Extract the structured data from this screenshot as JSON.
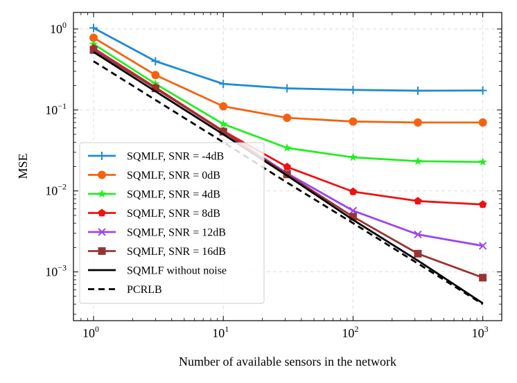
{
  "chart_data": {
    "type": "line",
    "xscale": "log",
    "yscale": "log",
    "xlabel": "Number of available sensors in the network",
    "ylabel": "MSE",
    "xlim": [
      0.7,
      1400
    ],
    "ylim": [
      0.00025,
      1.6
    ],
    "grid": true,
    "legend_position": "lower-left",
    "xticks": [
      {
        "value": 1,
        "base": "10",
        "exp": "0"
      },
      {
        "value": 10,
        "base": "10",
        "exp": "1"
      },
      {
        "value": 100,
        "base": "10",
        "exp": "2"
      },
      {
        "value": 1000,
        "base": "10",
        "exp": "3"
      }
    ],
    "yticks": [
      {
        "value": 1,
        "base": "10",
        "exp": "0"
      },
      {
        "value": 0.1,
        "base": "10",
        "exp": "−1"
      },
      {
        "value": 0.01,
        "base": "10",
        "exp": "−2"
      },
      {
        "value": 0.001,
        "base": "10",
        "exp": "−3"
      }
    ],
    "x": [
      1,
      3,
      10,
      31,
      100,
      316,
      1000
    ],
    "series": [
      {
        "name": "SQMLF, SNR = -4dB",
        "color": "#1f8ad2",
        "marker": "plus",
        "line": "solid",
        "values": [
          1.03,
          0.4,
          0.21,
          0.185,
          0.177,
          0.173,
          0.174
        ]
      },
      {
        "name": "SQMLF, SNR = 0dB",
        "color": "#f5620f",
        "marker": "circle",
        "line": "solid",
        "values": [
          0.78,
          0.27,
          0.111,
          0.08,
          0.072,
          0.07,
          0.07
        ]
      },
      {
        "name": "SQMLF, SNR = 4dB",
        "color": "#22ee22",
        "marker": "star",
        "line": "solid",
        "values": [
          0.65,
          0.21,
          0.067,
          0.034,
          0.026,
          0.0233,
          0.0228
        ]
      },
      {
        "name": "SQMLF, SNR = 8dB",
        "color": "#ee1111",
        "marker": "pentagon",
        "line": "solid",
        "values": [
          0.58,
          0.19,
          0.055,
          0.0198,
          0.0098,
          0.0075,
          0.0068
        ]
      },
      {
        "name": "SQMLF, SNR = 12dB",
        "color": "#9b44f0",
        "marker": "x",
        "line": "solid",
        "values": [
          0.56,
          0.185,
          0.054,
          0.0165,
          0.0057,
          0.0029,
          0.0021
        ]
      },
      {
        "name": "SQMLF, SNR = 16dB",
        "color": "#993333",
        "marker": "square",
        "line": "solid",
        "values": [
          0.55,
          0.185,
          0.054,
          0.016,
          0.0048,
          0.00168,
          0.00085
        ]
      },
      {
        "name": "SQMLF without noise",
        "color": "#000000",
        "marker": "none",
        "line": "solid",
        "values": [
          0.52,
          0.17,
          0.05,
          0.0155,
          0.0044,
          0.00138,
          0.00041
        ]
      },
      {
        "name": "PCRLB",
        "color": "#000000",
        "marker": "none",
        "line": "dashed",
        "values": [
          0.4,
          0.133,
          0.04,
          0.0127,
          0.004,
          0.00127,
          0.0004
        ]
      }
    ]
  }
}
